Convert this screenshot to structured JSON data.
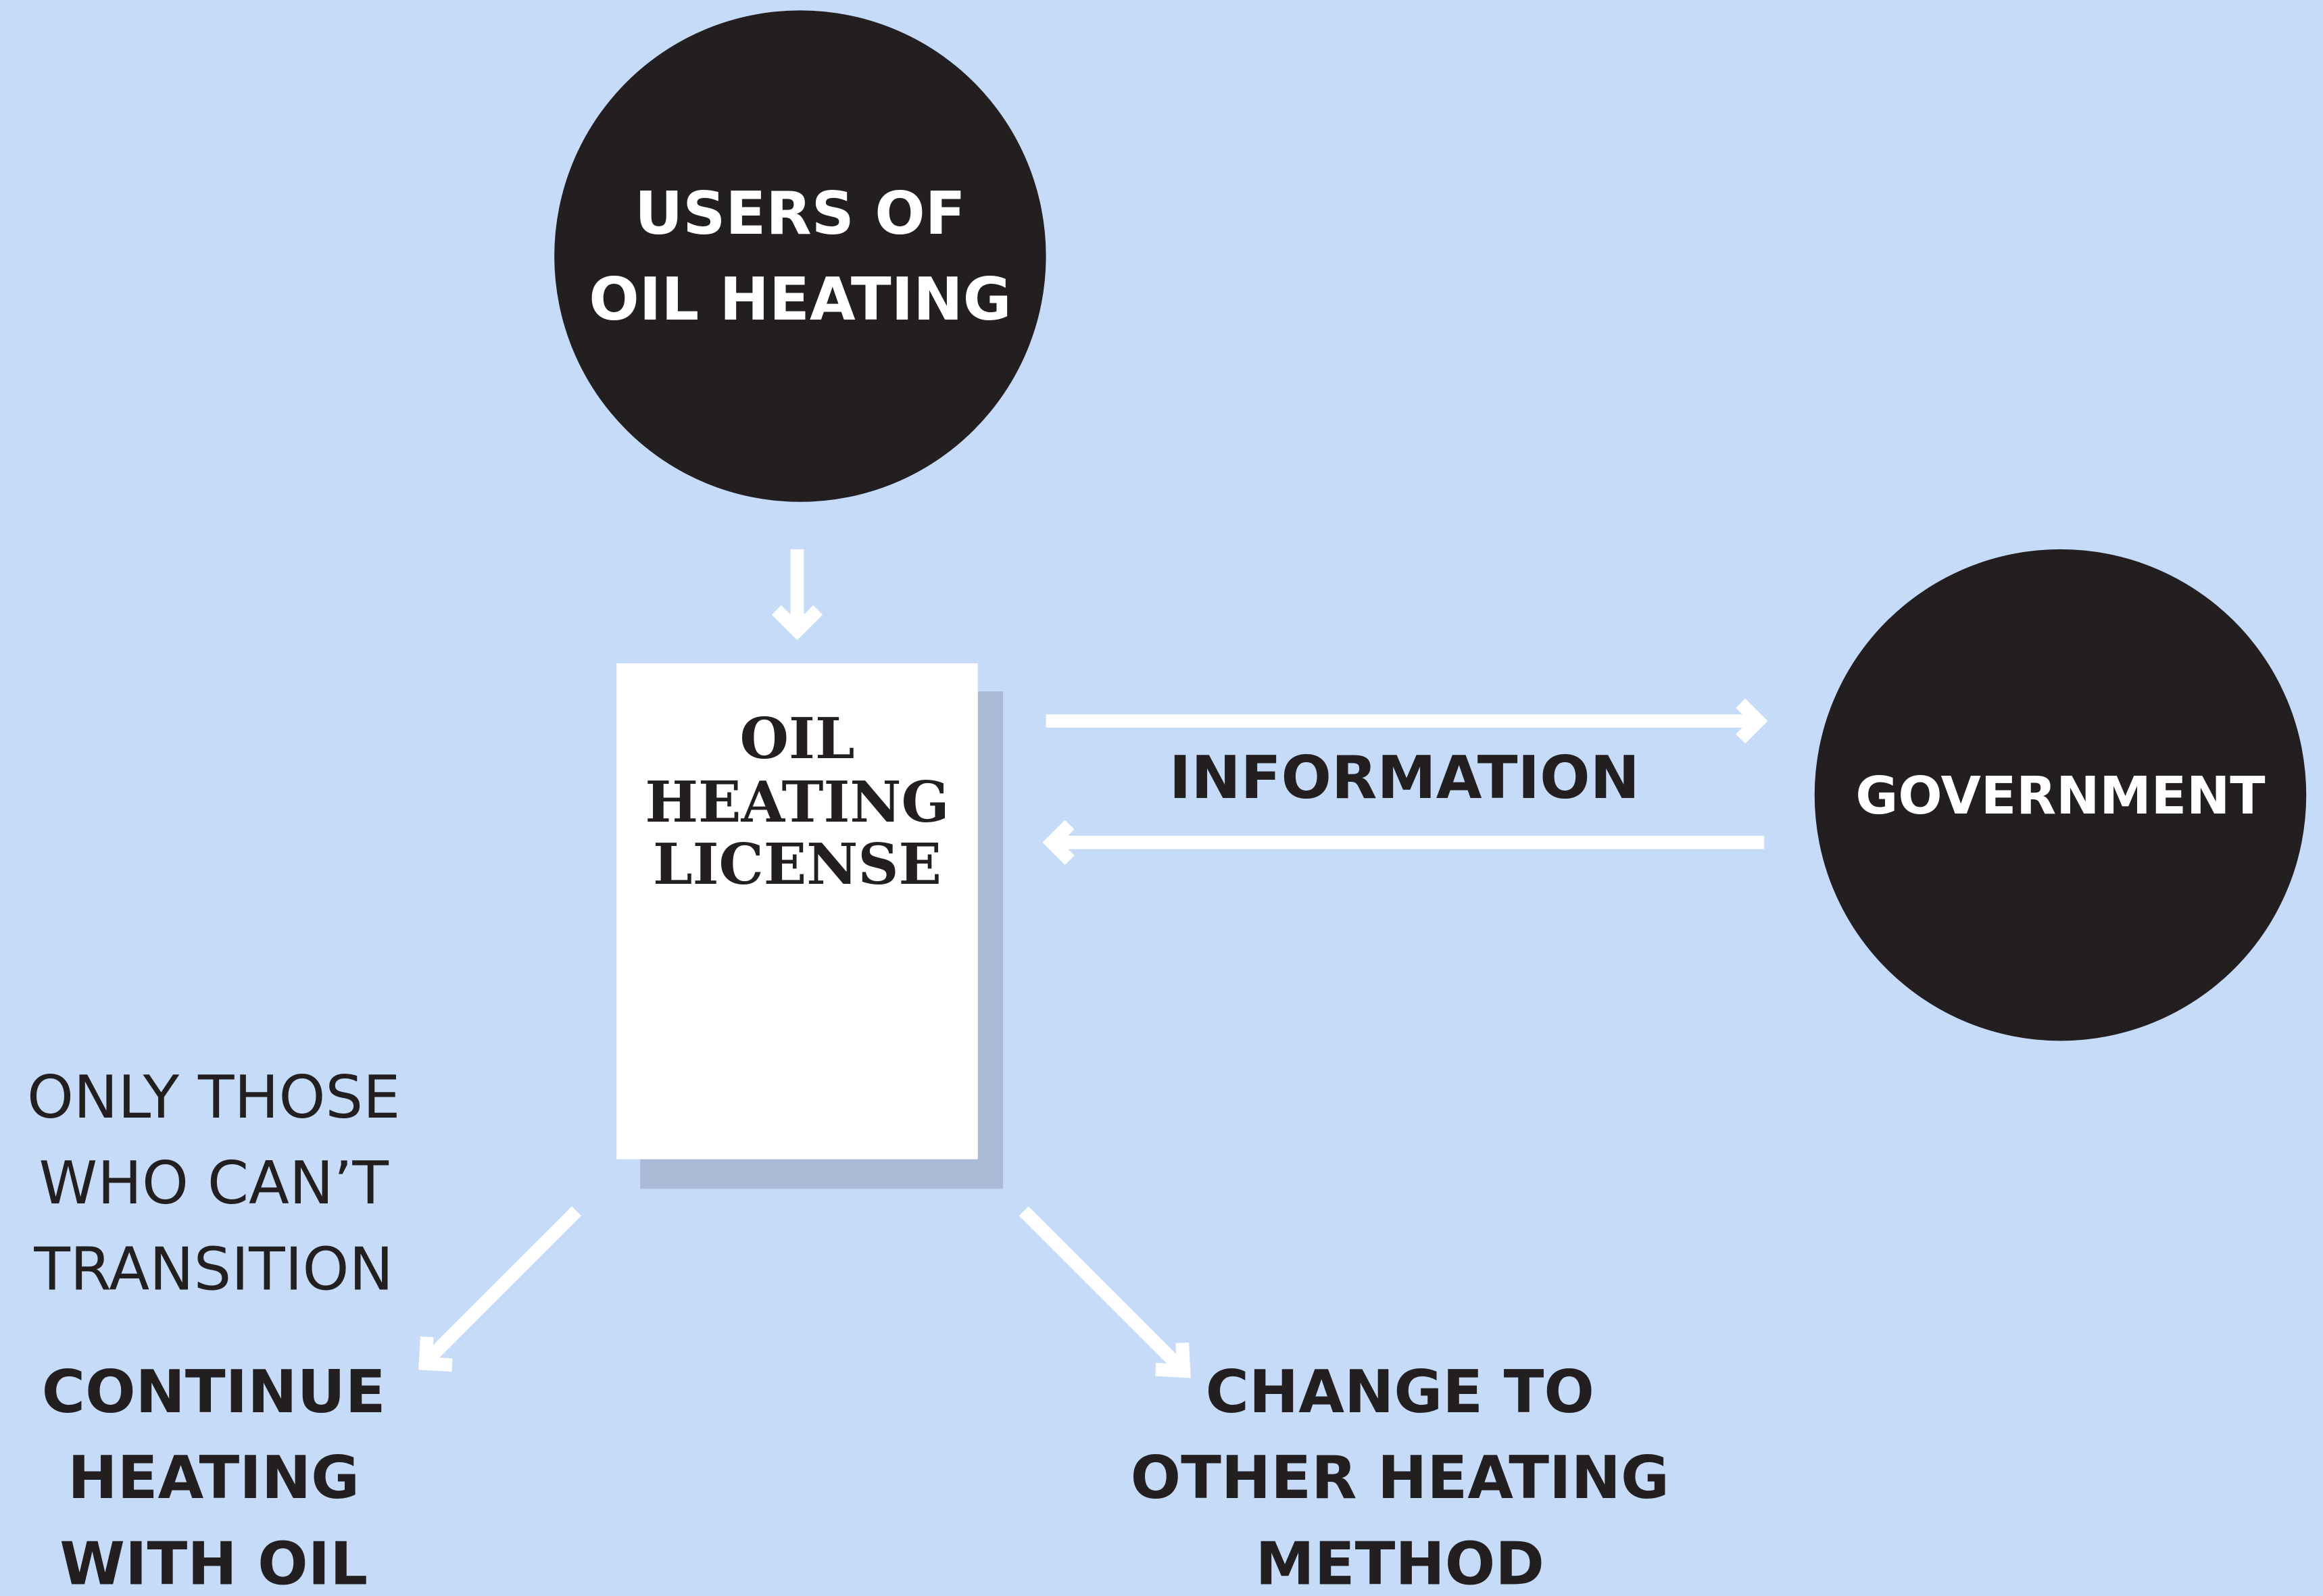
{
  "nodes": [
    {
      "label": [
        "USERS OF",
        "OIL HEATING"
      ]
    },
    {
      "label": [
        "OIL",
        "HEATING",
        "LICENSE"
      ]
    },
    {
      "label": [
        "GOVERNMENT"
      ]
    }
  ],
  "edges": [
    {
      "label": [
        "INFORMATION"
      ]
    }
  ],
  "outcomes": [
    {
      "note": [
        "ONLY THOSE",
        "WHO CAN’T",
        "TRANSITION"
      ],
      "label": [
        "CONTINUE",
        "HEATING",
        "WITH OIL"
      ]
    },
    {
      "label": [
        "CHANGE TO",
        "OTHER HEATING",
        "METHOD"
      ]
    }
  ]
}
